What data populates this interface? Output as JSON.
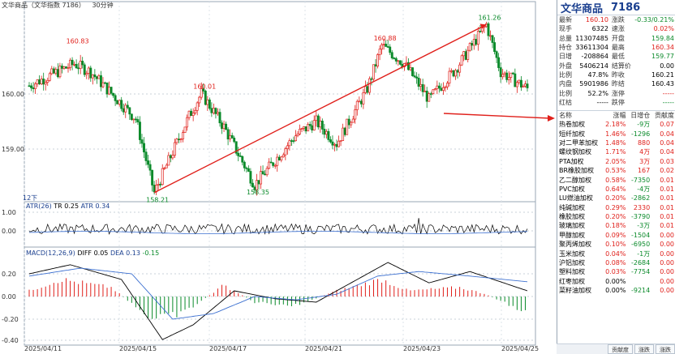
{
  "header": {
    "symbol_name": "文华商品（文华指数 7186）",
    "period": "30分钟",
    "indicator_atr": "ATR(26)",
    "tr_label": "TR 0.25",
    "atr_value": "ATR 0.34",
    "macd_label": "MACD(12,26,9)",
    "diff_label": "DIFF 0.05",
    "dea_label": "DEA 0.13",
    "macd_value": "-0.15"
  },
  "chart": {
    "price_ticks": [
      "160.00",
      "159.00"
    ],
    "atr_ticks": [
      "1.00",
      "0.00"
    ],
    "macd_ticks": [
      "0.20",
      "0.00",
      "-0.20",
      "-0.40"
    ],
    "date_labels": [
      "2025/04/11",
      "2025/04/15",
      "2025/04/17",
      "2025/04/21",
      "2025/04/23",
      "2025/04/25"
    ],
    "annotations": [
      "160.83",
      "158.21",
      "160.01",
      "158.35",
      "160.88",
      "161.26"
    ],
    "zoom_label": "12下"
  },
  "chart_data": {
    "type": "candlestick",
    "price_range": [
      157.9,
      161.45
    ],
    "peaks": [
      {
        "label": "160.83",
        "value": 160.83
      },
      {
        "label": "158.21",
        "value": 158.21
      },
      {
        "label": "160.01",
        "value": 160.01
      },
      {
        "label": "158.35",
        "value": 158.35
      },
      {
        "label": "160.88",
        "value": 160.88
      },
      {
        "label": "161.26",
        "value": 161.26
      }
    ],
    "trendline": {
      "from": 158.21,
      "to": 161.26
    }
  },
  "quote": {
    "title": "文华商品",
    "code": "7186",
    "rows": [
      {
        "l1": "最新",
        "v1": "160.10",
        "c1": "red",
        "l2": "涨跌",
        "v2": "-0.33/0.21%",
        "c2": "green"
      },
      {
        "l1": "现手",
        "v1": "6322",
        "c1": "blk",
        "l2": "速涨",
        "v2": "0.02%",
        "c2": "red"
      },
      {
        "l1": "总量",
        "v1": "11307485",
        "c1": "blk",
        "l2": "开盘",
        "v2": "159.84",
        "c2": "green"
      },
      {
        "l1": "持仓",
        "v1": "33611304",
        "c1": "blk",
        "l2": "最高",
        "v2": "160.34",
        "c2": "red"
      },
      {
        "l1": "日增",
        "v1": "-208864",
        "c1": "blk",
        "l2": "最低",
        "v2": "159.77",
        "c2": "green"
      },
      {
        "l1": "外盘",
        "v1": "5406214",
        "c1": "blk",
        "l2": "结算价",
        "v2": "0.00",
        "c2": "blk"
      },
      {
        "l1": "比例",
        "v1": "47.8%",
        "c1": "blk",
        "l2": "昨收",
        "v2": "160.21",
        "c2": "blk"
      },
      {
        "l1": "内盘",
        "v1": "5901986",
        "c1": "blk",
        "l2": "昨结",
        "v2": "160.43",
        "c2": "blk"
      },
      {
        "l1": "比例",
        "v1": "52.2%",
        "c1": "blk",
        "l2": "涨停",
        "v2": "-----",
        "c2": "red"
      },
      {
        "l1": "红枯",
        "v1": "-----",
        "c1": "blk",
        "l2": "跌停",
        "v2": "-----",
        "c2": "green"
      }
    ]
  },
  "list": {
    "headers": [
      "名称",
      "涨幅",
      "日增仓",
      "贡献度"
    ],
    "rows": [
      {
        "name": "热卷加权",
        "chg": "2.18%",
        "oi": "-9万",
        "con": "0.07"
      },
      {
        "name": "短纤加权",
        "chg": "1.46%",
        "oi": "-1296",
        "con": "0.04"
      },
      {
        "name": "对二甲苯加权",
        "chg": "1.48%",
        "oi": "880",
        "con": "0.04"
      },
      {
        "name": "螺纹钢加权",
        "chg": "1.71%",
        "oi": "4万",
        "con": "0.04"
      },
      {
        "name": "PTA加权",
        "chg": "2.05%",
        "oi": "3万",
        "con": "0.03"
      },
      {
        "name": "BR橡胶加权",
        "chg": "0.53%",
        "oi": "167",
        "con": "0.02"
      },
      {
        "name": "乙二醇加权",
        "chg": "0.58%",
        "oi": "-7350",
        "con": "0.01"
      },
      {
        "name": "PVC加权",
        "chg": "0.64%",
        "oi": "-4万",
        "con": "0.01"
      },
      {
        "name": "LU燃油加权",
        "chg": "0.20%",
        "oi": "-2862",
        "con": "0.01"
      },
      {
        "name": "纯碱加权",
        "chg": "0.29%",
        "oi": "2330",
        "con": "0.01"
      },
      {
        "name": "橡胶加权",
        "chg": "0.20%",
        "oi": "-3790",
        "con": "0.01"
      },
      {
        "name": "玻璃加权",
        "chg": "0.18%",
        "oi": "-3万",
        "con": "0.01"
      },
      {
        "name": "甲醇加权",
        "chg": "0.09%",
        "oi": "-1504",
        "con": "0.00"
      },
      {
        "name": "聚丙烯加权",
        "chg": "0.10%",
        "oi": "-6950",
        "con": "0.00"
      },
      {
        "name": "玉米加权",
        "chg": "0.04%",
        "oi": "-1万",
        "con": "0.00"
      },
      {
        "name": "沪铝加权",
        "chg": "0.08%",
        "oi": "-2684",
        "con": "0.00"
      },
      {
        "name": "塑料加权",
        "chg": "0.03%",
        "oi": "-7754",
        "con": "0.00"
      },
      {
        "name": "红枣加权",
        "chg": "0.00%",
        "oi": "",
        "con": "0.00"
      },
      {
        "name": "菜籽油加权",
        "chg": "0.00%",
        "oi": "-9214",
        "con": "0.00"
      }
    ]
  },
  "tabs": [
    "贡献度",
    "涨跌",
    "涨跌"
  ]
}
